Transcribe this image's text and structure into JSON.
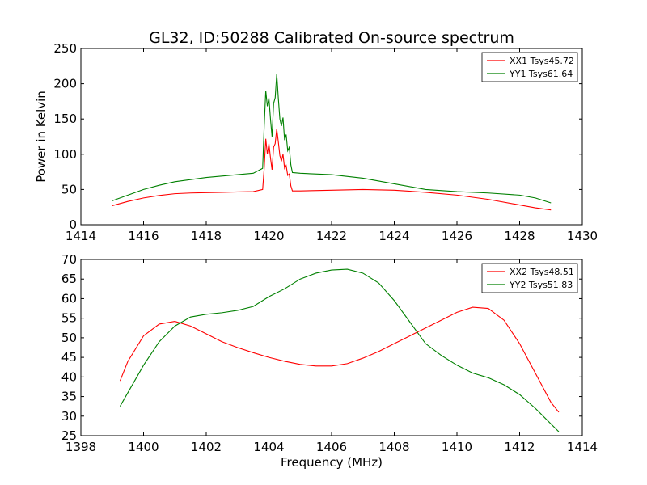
{
  "chart_data": [
    {
      "type": "line",
      "title": "GL32, ID:50288 Calibrated On-source spectrum",
      "xlabel": "",
      "ylabel": "Power in Kelvin",
      "xlim": [
        1414,
        1430
      ],
      "ylim": [
        0,
        250
      ],
      "xticks": [
        1414,
        1416,
        1418,
        1420,
        1422,
        1424,
        1426,
        1428,
        1430
      ],
      "yticks": [
        0,
        50,
        100,
        150,
        200,
        250
      ],
      "grid": false,
      "legend_position": "top-right",
      "series": [
        {
          "name": "XX1 Tsys45.72",
          "color": "#ff0000",
          "x": [
            1415.0,
            1415.5,
            1416.0,
            1416.5,
            1417.0,
            1417.5,
            1418.0,
            1418.5,
            1419.0,
            1419.5,
            1419.8,
            1419.85,
            1419.9,
            1419.95,
            1420.0,
            1420.05,
            1420.1,
            1420.15,
            1420.2,
            1420.25,
            1420.3,
            1420.35,
            1420.4,
            1420.45,
            1420.5,
            1420.55,
            1420.6,
            1420.65,
            1420.7,
            1420.75,
            1421.0,
            1422.0,
            1423.0,
            1424.0,
            1425.0,
            1426.0,
            1427.0,
            1428.0,
            1428.5,
            1429.0
          ],
          "y": [
            27,
            33,
            38,
            41.5,
            44,
            45,
            45.5,
            46,
            46.5,
            47,
            50,
            80,
            122,
            100,
            115,
            95,
            78,
            110,
            115,
            136,
            118,
            98,
            90,
            100,
            80,
            84,
            70,
            72,
            55,
            48,
            48,
            49,
            50,
            49,
            46,
            42,
            36,
            28,
            24,
            21
          ]
        },
        {
          "name": "YY1 Tsys61.64",
          "color": "#008000",
          "x": [
            1415.0,
            1415.5,
            1416.0,
            1416.5,
            1417.0,
            1417.5,
            1418.0,
            1418.5,
            1419.0,
            1419.5,
            1419.8,
            1419.85,
            1419.9,
            1419.95,
            1420.0,
            1420.05,
            1420.1,
            1420.15,
            1420.2,
            1420.25,
            1420.3,
            1420.35,
            1420.4,
            1420.45,
            1420.5,
            1420.55,
            1420.6,
            1420.65,
            1420.7,
            1420.75,
            1421.0,
            1422.0,
            1423.0,
            1424.0,
            1425.0,
            1426.0,
            1427.0,
            1428.0,
            1428.5,
            1429.0
          ],
          "y": [
            34,
            42,
            50,
            56,
            61,
            64,
            67,
            69,
            71,
            73,
            80,
            140,
            190,
            168,
            180,
            150,
            125,
            172,
            180,
            214,
            180,
            150,
            140,
            152,
            120,
            128,
            105,
            110,
            85,
            74,
            73,
            71,
            66,
            58,
            50,
            47,
            45,
            42,
            38,
            31
          ]
        }
      ]
    },
    {
      "type": "line",
      "title": "",
      "xlabel": "Frequency (MHz)",
      "ylabel": "",
      "xlim": [
        1398,
        1414
      ],
      "ylim": [
        25,
        70
      ],
      "xticks": [
        1398,
        1400,
        1402,
        1404,
        1406,
        1408,
        1410,
        1412,
        1414
      ],
      "yticks": [
        25,
        30,
        35,
        40,
        45,
        50,
        55,
        60,
        65,
        70
      ],
      "grid": false,
      "legend_position": "top-right",
      "series": [
        {
          "name": "XX2 Tsys48.51",
          "color": "#ff0000",
          "x": [
            1399.25,
            1399.5,
            1400.0,
            1400.5,
            1401.0,
            1401.5,
            1402.0,
            1402.5,
            1403.0,
            1403.5,
            1404.0,
            1404.5,
            1405.0,
            1405.5,
            1406.0,
            1406.5,
            1407.0,
            1407.5,
            1408.0,
            1408.5,
            1409.0,
            1409.5,
            1410.0,
            1410.5,
            1411.0,
            1411.5,
            1412.0,
            1412.5,
            1413.0,
            1413.25
          ],
          "y": [
            39,
            44,
            50.5,
            53.5,
            54.2,
            53,
            51,
            49,
            47.5,
            46.2,
            45,
            44,
            43.2,
            42.8,
            42.8,
            43.4,
            44.8,
            46.5,
            48.5,
            50.5,
            52.5,
            54.5,
            56.5,
            57.8,
            57.5,
            54.5,
            48.5,
            41,
            33.5,
            31
          ]
        },
        {
          "name": "YY2 Tsys51.83",
          "color": "#008000",
          "x": [
            1399.25,
            1399.5,
            1400.0,
            1400.5,
            1401.0,
            1401.5,
            1402.0,
            1402.5,
            1403.0,
            1403.5,
            1404.0,
            1404.5,
            1405.0,
            1405.5,
            1406.0,
            1406.5,
            1407.0,
            1407.5,
            1408.0,
            1408.5,
            1409.0,
            1409.5,
            1410.0,
            1410.5,
            1411.0,
            1411.5,
            1412.0,
            1412.5,
            1413.0,
            1413.25
          ],
          "y": [
            32.5,
            36,
            43,
            49,
            53,
            55.3,
            56,
            56.4,
            57,
            58,
            60.5,
            62.5,
            65,
            66.5,
            67.3,
            67.5,
            66.5,
            64,
            59.5,
            54,
            48.5,
            45.5,
            43,
            41,
            39.8,
            38,
            35.5,
            32,
            28,
            26
          ]
        }
      ]
    }
  ]
}
